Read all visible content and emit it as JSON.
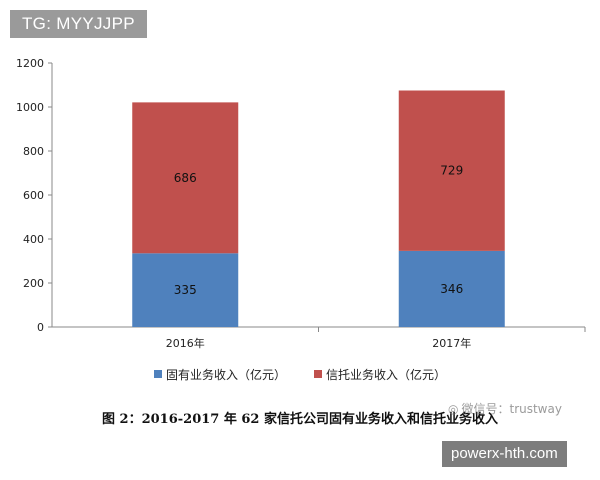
{
  "tag": "TG: MYYJJPP",
  "caption": "图 2：2016-2017 年 62 家信托公司固有业务收入和信托业务收入",
  "watermark": "微信号：trustway",
  "site": "powerx-hth.com",
  "colors": {
    "proprietary": "#4f81bd",
    "trust": "#c0504d",
    "axis": "#888888"
  },
  "chart_data": {
    "type": "bar",
    "stacked": true,
    "categories": [
      "2016年",
      "2017年"
    ],
    "series": [
      {
        "name": "固有业务收入（亿元）",
        "values": [
          335,
          346
        ]
      },
      {
        "name": "信托业务收入（亿元）",
        "values": [
          686,
          729
        ]
      }
    ],
    "ylim": [
      0,
      1200
    ],
    "yticks": [
      0,
      200,
      400,
      600,
      800,
      1000,
      1200
    ],
    "grid": false,
    "legend_position": "bottom"
  }
}
